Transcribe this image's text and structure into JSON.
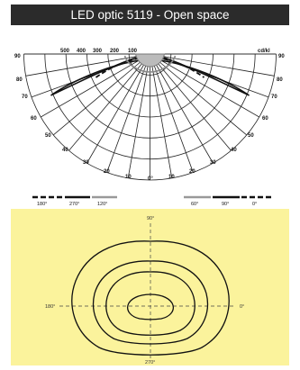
{
  "title": "LED optic 5119 - Open space",
  "polar": {
    "unit": "cd/kl",
    "intensity_labels": [
      "500",
      "400",
      "300",
      "200",
      "100"
    ],
    "left_angles": [
      "90",
      "80",
      "70",
      "60",
      "50",
      "40",
      "30",
      "20",
      "10"
    ],
    "right_angles": [
      "90",
      "80",
      "70",
      "60",
      "50",
      "40",
      "30",
      "20",
      "10"
    ],
    "bottom_angle": "0°",
    "legend_left": [
      "180°",
      "270°",
      "120°"
    ],
    "legend_right": [
      "60°",
      "90°",
      "0°"
    ]
  },
  "isolux": {
    "label_top": "90°",
    "label_left": "180°",
    "label_right": "0°",
    "label_bottom": "270°",
    "background": "#fbf39c"
  }
}
